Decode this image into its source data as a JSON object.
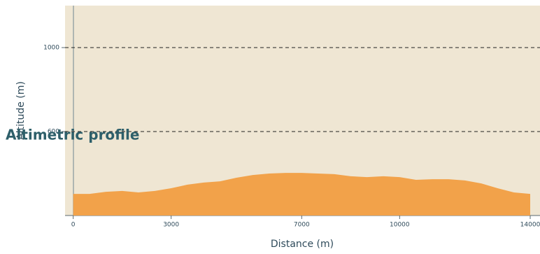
{
  "chart_data": {
    "type": "area",
    "title": "Altimetric profile",
    "x_label": "Distance (m)",
    "y_label": "Altitude (m)",
    "x": [
      0,
      500,
      1000,
      1500,
      2000,
      2500,
      3000,
      3500,
      4000,
      4500,
      5000,
      5500,
      6000,
      6500,
      7000,
      7500,
      8000,
      8500,
      9000,
      9500,
      10000,
      10500,
      11000,
      11500,
      12000,
      12500,
      13000,
      13500,
      14000
    ],
    "values": [
      303,
      303,
      313,
      317,
      310,
      317,
      330,
      347,
      357,
      363,
      380,
      393,
      400,
      403,
      403,
      400,
      397,
      387,
      383,
      387,
      383,
      370,
      373,
      373,
      367,
      353,
      330,
      310,
      303
    ],
    "color": "#f2a24a",
    "xlim": [
      -250,
      14300
    ],
    "ylim": [
      200,
      1200
    ],
    "xticks": [
      0,
      3000,
      7000,
      10000,
      14000
    ],
    "yticks": [
      600,
      1000
    ],
    "grid": true
  }
}
